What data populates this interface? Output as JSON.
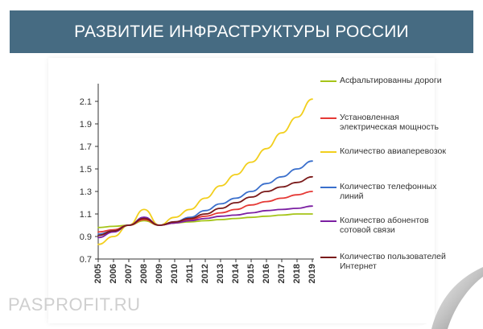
{
  "banner": {
    "title": "РАЗВИТИЕ ИНФРАСТРУКТУРЫ РОССИИ"
  },
  "watermark": {
    "text": "PASPROFIT.RU"
  },
  "colors": {
    "banner_bg": "#466b82",
    "axis": "#333333",
    "grid": "#e6e6e6"
  },
  "chart_data": {
    "type": "line",
    "title": "РАЗВИТИЕ ИНФРАСТРУКТУРЫ РОССИИ",
    "xlabel": "",
    "ylabel": "",
    "x": [
      2005,
      2006,
      2007,
      2008,
      2009,
      2010,
      2011,
      2012,
      2013,
      2014,
      2015,
      2016,
      2017,
      2018,
      2019
    ],
    "x_ticks": [
      "2005",
      "2006",
      "2007",
      "2008",
      "2009",
      "2010",
      "2011",
      "2012",
      "2013",
      "2014",
      "2015",
      "2016",
      "2017",
      "2018",
      "2019"
    ],
    "ylim": [
      0.7,
      2.2
    ],
    "y_ticks": [
      "0.7",
      "0.9",
      "1.1",
      "1.3",
      "1.5",
      "1.7",
      "1.9",
      "2.1"
    ],
    "y_tick_values": [
      0.7,
      0.9,
      1.1,
      1.3,
      1.5,
      1.7,
      1.9,
      2.1
    ],
    "grid": false,
    "legend_position": "right",
    "series": [
      {
        "name": "Асфальтированны дороги",
        "color": "#a5c418",
        "values": [
          0.98,
          0.99,
          1.0,
          1.04,
          1.0,
          1.02,
          1.03,
          1.04,
          1.05,
          1.06,
          1.07,
          1.08,
          1.09,
          1.1,
          1.1
        ]
      },
      {
        "name": "Установленная электрическая мощность",
        "color": "#e53935",
        "values": [
          0.94,
          0.96,
          1.0,
          1.05,
          1.0,
          1.02,
          1.05,
          1.08,
          1.11,
          1.14,
          1.18,
          1.21,
          1.24,
          1.27,
          1.3
        ]
      },
      {
        "name": "Количество авиаперевозок",
        "color": "#f2cf1d",
        "values": [
          0.83,
          0.9,
          1.0,
          1.14,
          1.0,
          1.07,
          1.14,
          1.24,
          1.35,
          1.45,
          1.56,
          1.68,
          1.82,
          1.96,
          2.12
        ]
      },
      {
        "name": "Количество телефонных линий",
        "color": "#3a6fcc",
        "values": [
          0.92,
          0.95,
          1.0,
          1.07,
          1.0,
          1.03,
          1.07,
          1.13,
          1.19,
          1.24,
          1.3,
          1.37,
          1.43,
          1.5,
          1.57
        ]
      },
      {
        "name": "Количество абонентов сотовой связи",
        "color": "#7b1fa2",
        "values": [
          0.89,
          0.94,
          1.0,
          1.07,
          1.0,
          1.02,
          1.04,
          1.06,
          1.08,
          1.09,
          1.11,
          1.13,
          1.14,
          1.15,
          1.17
        ]
      },
      {
        "name": "Количество пользователей Интернет",
        "color": "#7a1a1a",
        "values": [
          0.91,
          0.95,
          1.0,
          1.06,
          1.0,
          1.03,
          1.06,
          1.1,
          1.15,
          1.2,
          1.25,
          1.3,
          1.34,
          1.38,
          1.43
        ]
      }
    ]
  }
}
